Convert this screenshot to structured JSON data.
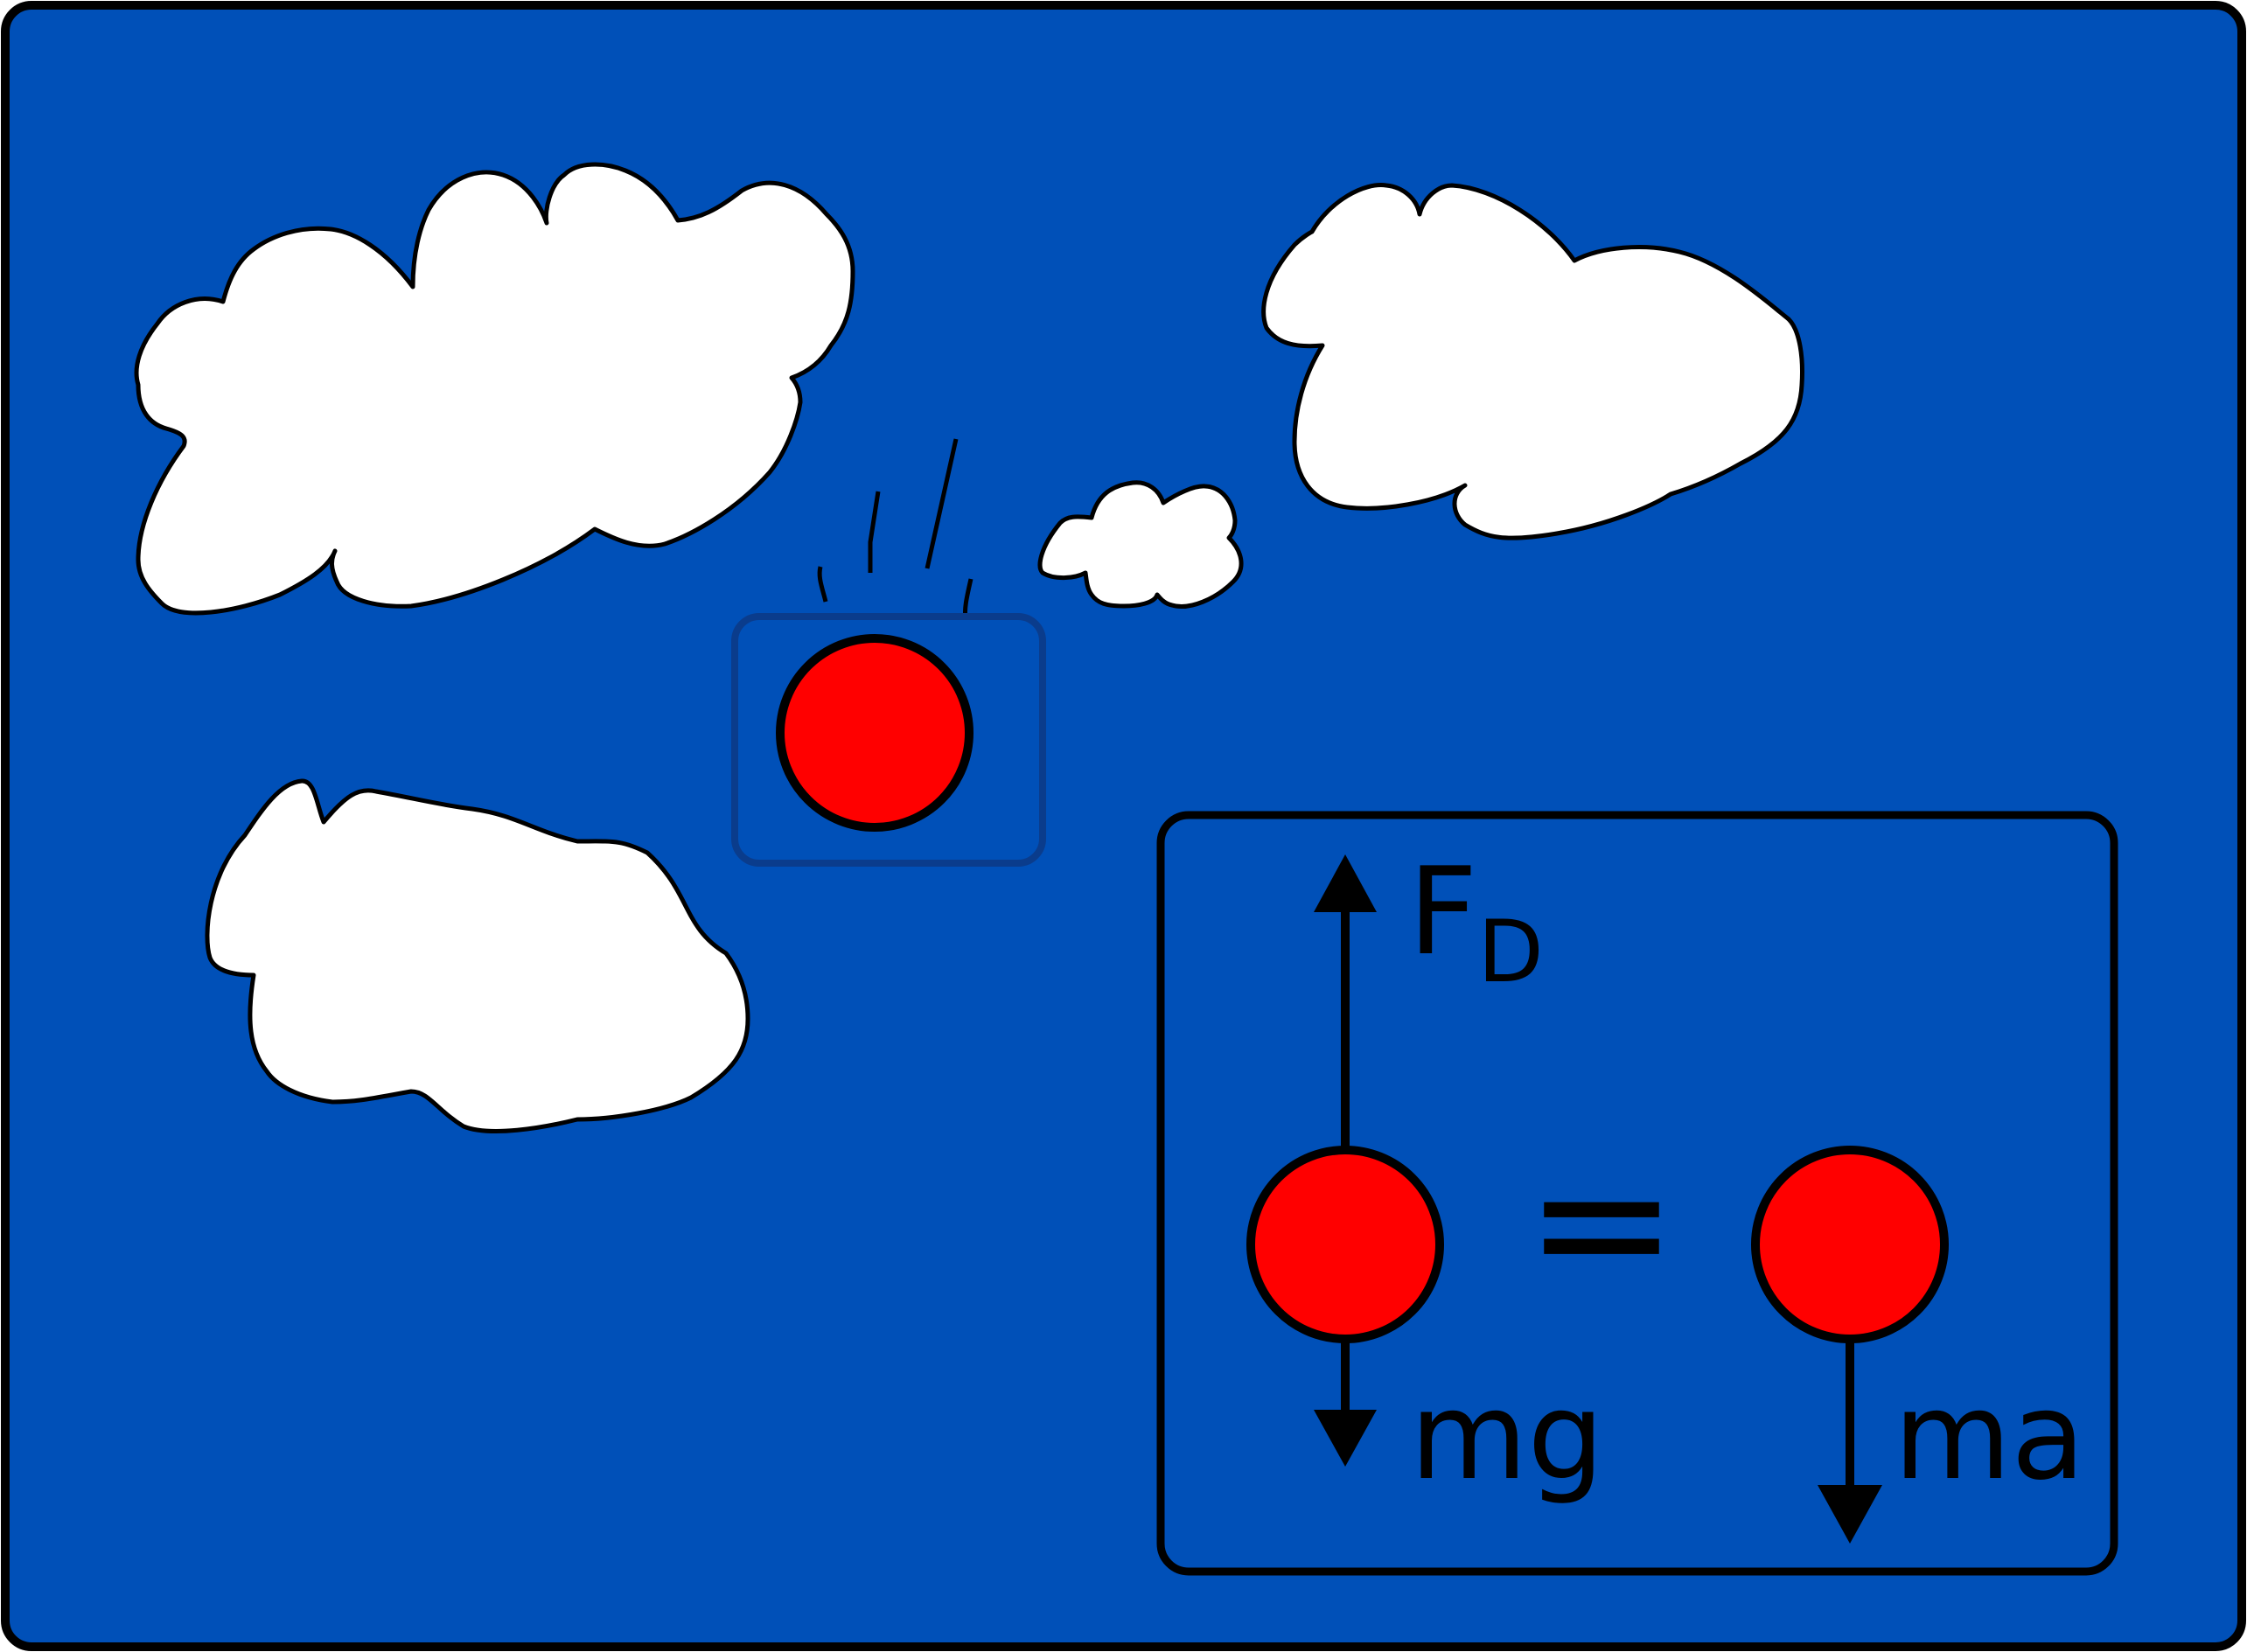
{
  "colors": {
    "sky": "#0050b8",
    "outline": "#000000",
    "cloud": "#ffffff",
    "ball": "#ff0000",
    "highlight_box": "#0a3c8c"
  },
  "labels": {
    "drag_force_main": "F",
    "drag_force_subscript": "D",
    "weight": "mg",
    "equals": "=",
    "net_force": "ma"
  }
}
